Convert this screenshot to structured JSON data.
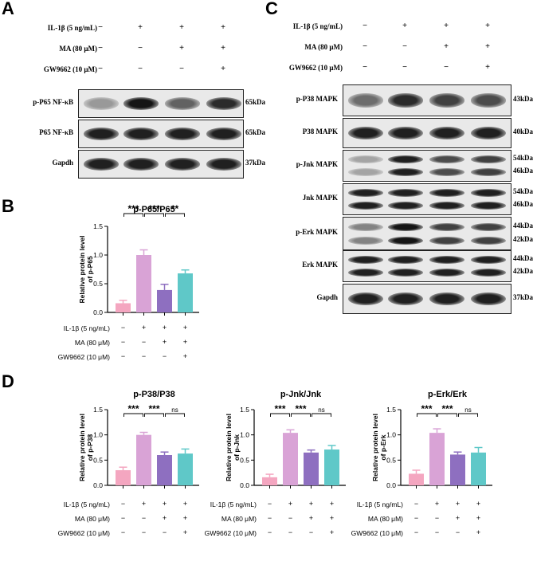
{
  "panels": {
    "A": "A",
    "B": "B",
    "C": "C",
    "D": "D"
  },
  "conditions_blot": [
    "IL-1β (5 ng/mL)",
    "MA (80 μM)",
    "GW9662 (10 μM)"
  ],
  "conditions_chart": [
    "IL-1β (5 ng/mL)",
    "MA (80 μM)",
    "GW9662 (10 μM)"
  ],
  "signs": [
    [
      "−",
      "+",
      "+",
      "+"
    ],
    [
      "−",
      "−",
      "+",
      "+"
    ],
    [
      "−",
      "−",
      "−",
      "+"
    ]
  ],
  "panel_A": {
    "blots": [
      {
        "label": "p-P65 NF-κB",
        "kda": [
          "65kDa"
        ],
        "intensity": [
          0.35,
          0.95,
          0.6,
          0.85
        ]
      },
      {
        "label": "P65 NF-κB",
        "kda": [
          "65kDa"
        ],
        "intensity": [
          0.9,
          0.9,
          0.9,
          0.9
        ]
      },
      {
        "label": "Gapdh",
        "kda": [
          "37kDa"
        ],
        "intensity": [
          0.9,
          0.9,
          0.9,
          0.9
        ]
      }
    ]
  },
  "panel_C": {
    "blots": [
      {
        "label": "p-P38 MAPK",
        "kda": [
          "43kDa"
        ],
        "intensity": [
          0.55,
          0.85,
          0.75,
          0.7
        ]
      },
      {
        "label": "P38 MAPK",
        "kda": [
          "40kDa"
        ],
        "intensity": [
          0.9,
          0.9,
          0.9,
          0.9
        ]
      },
      {
        "label": "p-Jnk MAPK",
        "kda": [
          "54kDa",
          "46kDa"
        ],
        "intensity": [
          0.3,
          0.9,
          0.7,
          0.75
        ]
      },
      {
        "label": "Jnk MAPK",
        "kda": [
          "54kDa",
          "46kDa"
        ],
        "intensity": [
          0.9,
          0.9,
          0.9,
          0.9
        ]
      },
      {
        "label": "p-Erk MAPK",
        "kda": [
          "44kDa",
          "42kDa"
        ],
        "intensity": [
          0.45,
          0.95,
          0.75,
          0.75
        ]
      },
      {
        "label": "Erk MAPK",
        "kda": [
          "44kDa",
          "42kDa"
        ],
        "intensity": [
          0.9,
          0.9,
          0.9,
          0.9
        ]
      },
      {
        "label": "Gapdh",
        "kda": [
          "37kDa"
        ],
        "intensity": [
          0.9,
          0.9,
          0.9,
          0.9
        ]
      }
    ]
  },
  "chart_data": [
    {
      "type": "bar",
      "title": "p-P65/P65",
      "ylabel": "Relative protein level of p-P65",
      "ylim": [
        0,
        1.5
      ],
      "yticks": [
        "0.0",
        "0.5",
        "1.0",
        "1.5"
      ],
      "values": [
        0.16,
        1.0,
        0.39,
        0.68
      ],
      "errors": [
        0.05,
        0.09,
        0.1,
        0.06
      ],
      "colors": [
        "#f4a6c0",
        "#d9a3d6",
        "#8e6fc0",
        "#5fc8c8"
      ],
      "significance": [
        "***",
        "***",
        "**"
      ]
    },
    {
      "type": "bar",
      "title": "p-P38/P38",
      "ylabel": "Relative protein level of p-P38",
      "ylim": [
        0,
        1.5
      ],
      "yticks": [
        "0.0",
        "0.5",
        "1.0",
        "1.5"
      ],
      "values": [
        0.3,
        1.0,
        0.6,
        0.63
      ],
      "errors": [
        0.06,
        0.05,
        0.06,
        0.09
      ],
      "colors": [
        "#f4a6c0",
        "#d9a3d6",
        "#8e6fc0",
        "#5fc8c8"
      ],
      "significance": [
        "***",
        "***",
        "ns"
      ]
    },
    {
      "type": "bar",
      "title": "p-Jnk/Jnk",
      "ylabel": "Relative protein level of p-Jnk",
      "ylim": [
        0,
        1.5
      ],
      "yticks": [
        "0.0",
        "0.5",
        "1.0",
        "1.5"
      ],
      "values": [
        0.16,
        1.04,
        0.65,
        0.71
      ],
      "errors": [
        0.06,
        0.06,
        0.05,
        0.08
      ],
      "colors": [
        "#f4a6c0",
        "#d9a3d6",
        "#8e6fc0",
        "#5fc8c8"
      ],
      "significance": [
        "***",
        "***",
        "ns"
      ]
    },
    {
      "type": "bar",
      "title": "p-Erk/Erk",
      "ylabel": "Relative protein level of p-Erk",
      "ylim": [
        0,
        1.5
      ],
      "yticks": [
        "0.0",
        "0.5",
        "1.0",
        "1.5"
      ],
      "values": [
        0.23,
        1.04,
        0.61,
        0.65
      ],
      "errors": [
        0.07,
        0.08,
        0.05,
        0.1
      ],
      "colors": [
        "#f4a6c0",
        "#d9a3d6",
        "#8e6fc0",
        "#5fc8c8"
      ],
      "significance": [
        "***",
        "***",
        "ns"
      ]
    }
  ]
}
